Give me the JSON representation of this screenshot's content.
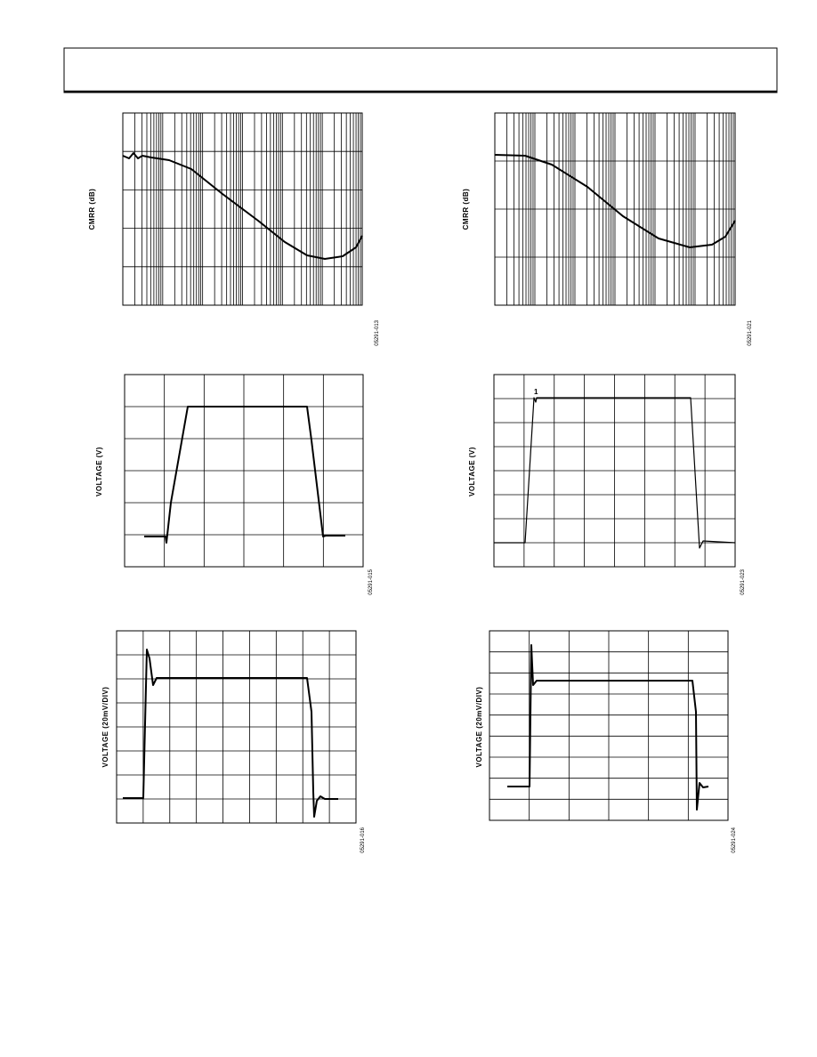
{
  "figures": [
    {
      "y_label": "CMRR (dB)",
      "figure_id": "05291-013"
    },
    {
      "y_label": "CMRR (dB)",
      "figure_id": "05291-021"
    },
    {
      "y_label": "VOLTAGE (V)",
      "figure_id": "05291-015"
    },
    {
      "y_label": "VOLTAGE (V)",
      "figure_id": "05291-023",
      "marker": "1"
    },
    {
      "y_label": "VOLTAGE (20mV/DIV)",
      "figure_id": "05291-016"
    },
    {
      "y_label": "VOLTAGE (20mV/DIV)",
      "figure_id": "05291-024"
    }
  ]
}
